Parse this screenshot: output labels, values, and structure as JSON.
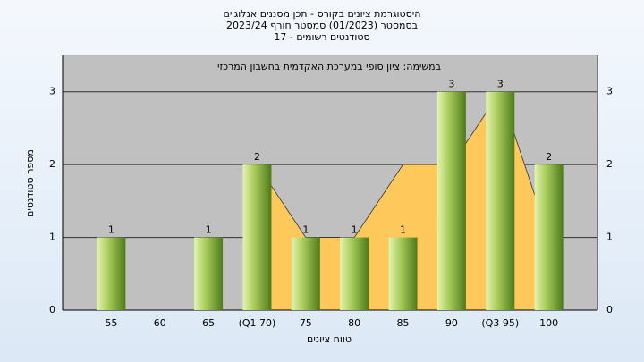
{
  "chart_data": {
    "type": "bar",
    "title": "היסטוגרמת ציונים בקורס - תכן מסננים אנלוגיים",
    "subtitle": "בסמסטר  (01/2023)  סמסטר חורף  2023/24",
    "subtitle2": "סטודנטים רשומים - 17",
    "inner_title": "במשימה: ציון סופי במערכת האקדמית בחשבון המרכזי",
    "xlabel": "טווח ציונים",
    "ylabel": "מספר סטודנטים",
    "categories": [
      "55",
      "60",
      "65",
      "(Q1 70)",
      "75",
      "80",
      "85",
      "90",
      "(Q3 95)",
      "100"
    ],
    "values": [
      1,
      0,
      1,
      2,
      1,
      1,
      1,
      3,
      3,
      2
    ],
    "area": {
      "color": "#ffc85a",
      "values": [
        null,
        null,
        null,
        2,
        1,
        1,
        2,
        2,
        3,
        1
      ]
    },
    "ylim": [
      0,
      3.5
    ],
    "yticks": [
      0,
      1,
      2,
      3
    ],
    "grid": true
  }
}
